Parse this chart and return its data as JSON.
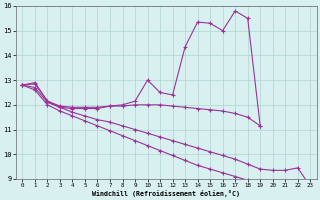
{
  "xlabel": "Windchill (Refroidissement éolien,°C)",
  "x": [
    0,
    1,
    2,
    3,
    4,
    5,
    6,
    7,
    8,
    9,
    10,
    11,
    12,
    13,
    14,
    15,
    16,
    17,
    18,
    19,
    20,
    21,
    22,
    23
  ],
  "line_main": [
    12.8,
    12.9,
    12.15,
    11.9,
    11.85,
    11.85,
    11.85,
    11.95,
    12.0,
    12.15,
    13.0,
    12.5,
    12.4,
    14.35,
    15.35,
    15.3,
    15.0,
    15.8,
    15.5,
    11.15,
    null,
    null,
    null,
    null
  ],
  "line_mid": [
    12.8,
    12.85,
    12.15,
    11.95,
    11.9,
    11.9,
    11.9,
    11.95,
    11.95,
    12.0,
    12.0,
    12.0,
    11.95,
    11.9,
    11.85,
    11.8,
    11.75,
    11.65,
    11.5,
    11.15,
    null,
    null,
    null,
    null
  ],
  "line_low1": [
    12.8,
    12.7,
    12.1,
    11.9,
    11.7,
    11.55,
    11.4,
    11.3,
    11.15,
    11.0,
    10.85,
    10.7,
    10.55,
    10.4,
    10.25,
    10.1,
    9.95,
    9.8,
    9.6,
    9.4,
    9.35,
    9.35,
    9.45,
    8.7
  ],
  "line_low2": [
    12.8,
    12.6,
    12.0,
    11.75,
    11.55,
    11.35,
    11.15,
    10.95,
    10.75,
    10.55,
    10.35,
    10.15,
    9.95,
    9.75,
    9.55,
    9.4,
    9.25,
    9.1,
    8.95,
    8.85,
    8.8,
    8.75,
    null,
    null
  ],
  "ylim": [
    9,
    16
  ],
  "xlim": [
    0,
    23
  ],
  "yticks": [
    9,
    10,
    11,
    12,
    13,
    14,
    15,
    16
  ],
  "xticks": [
    0,
    1,
    2,
    3,
    4,
    5,
    6,
    7,
    8,
    9,
    10,
    11,
    12,
    13,
    14,
    15,
    16,
    17,
    18,
    19,
    20,
    21,
    22,
    23
  ],
  "line_color": "#993399",
  "bg_color": "#d8f0f0",
  "grid_color": "#b0d4d4"
}
